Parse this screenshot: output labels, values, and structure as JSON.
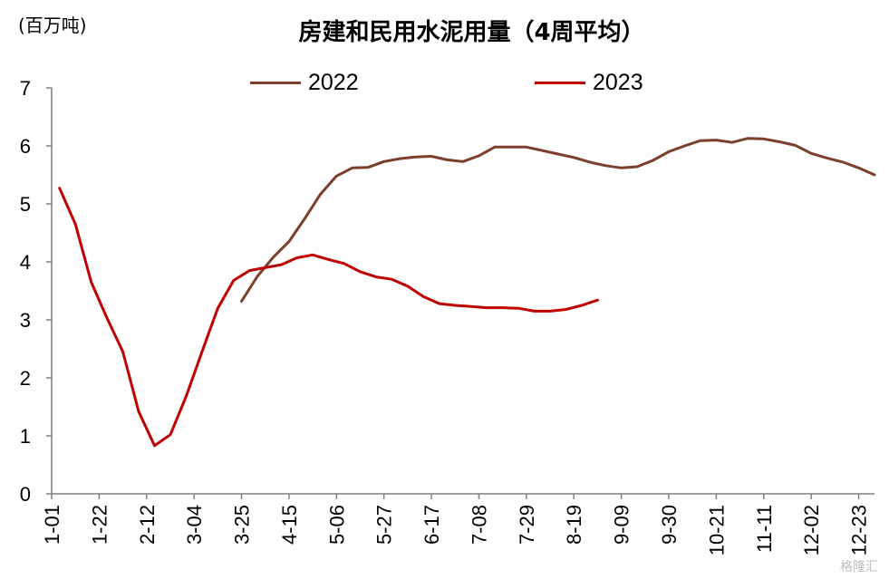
{
  "chart_data": {
    "type": "line",
    "title": "房建和民用水泥用量（4周平均）",
    "ylabel": "(百万吨)",
    "xlabel": "",
    "ylim": [
      0,
      7
    ],
    "yticks": [
      "0",
      "1",
      "2",
      "3",
      "4",
      "5",
      "6",
      "7"
    ],
    "x_tick_labels": [
      "1-01",
      "1-22",
      "2-12",
      "3-04",
      "3-25",
      "4-15",
      "5-06",
      "5-27",
      "6-17",
      "7-08",
      "7-29",
      "8-19",
      "9-09",
      "9-30",
      "10-21",
      "11-11",
      "12-02",
      "12-23"
    ],
    "legend_position": "top",
    "grid": false,
    "series": [
      {
        "name": "2022",
        "color": "#7b3f2a",
        "points": [
          [
            12,
            3.32
          ],
          [
            13,
            3.75
          ],
          [
            14,
            4.08
          ],
          [
            15,
            4.35
          ],
          [
            16,
            4.75
          ],
          [
            17,
            5.17
          ],
          [
            18,
            5.48
          ],
          [
            19,
            5.62
          ],
          [
            20,
            5.63
          ],
          [
            21,
            5.73
          ],
          [
            22,
            5.78
          ],
          [
            23,
            5.81
          ],
          [
            24,
            5.82
          ],
          [
            25,
            5.76
          ],
          [
            26,
            5.73
          ],
          [
            27,
            5.83
          ],
          [
            28,
            5.98
          ],
          [
            29,
            5.98
          ],
          [
            30,
            5.98
          ],
          [
            31,
            5.92
          ],
          [
            32,
            5.86
          ],
          [
            33,
            5.8
          ],
          [
            34,
            5.72
          ],
          [
            35,
            5.66
          ],
          [
            36,
            5.62
          ],
          [
            37,
            5.64
          ],
          [
            38,
            5.75
          ],
          [
            39,
            5.9
          ],
          [
            40,
            6.0
          ],
          [
            41,
            6.09
          ],
          [
            42,
            6.1
          ],
          [
            43,
            6.06
          ],
          [
            44,
            6.13
          ],
          [
            45,
            6.12
          ],
          [
            46,
            6.07
          ],
          [
            47,
            6.01
          ],
          [
            48,
            5.87
          ],
          [
            49,
            5.79
          ],
          [
            50,
            5.72
          ],
          [
            51,
            5.62
          ],
          [
            52,
            5.5
          ]
        ]
      },
      {
        "name": "2023",
        "color": "#c00000",
        "points": [
          [
            0.5,
            5.27
          ],
          [
            1.5,
            4.65
          ],
          [
            2.5,
            3.65
          ],
          [
            3.5,
            3.03
          ],
          [
            4.5,
            2.45
          ],
          [
            5.5,
            1.42
          ],
          [
            6.5,
            0.83
          ],
          [
            7.5,
            1.02
          ],
          [
            8.5,
            1.68
          ],
          [
            9.5,
            2.45
          ],
          [
            10.5,
            3.2
          ],
          [
            11.5,
            3.68
          ],
          [
            12.5,
            3.85
          ],
          [
            13.5,
            3.9
          ],
          [
            14.5,
            3.95
          ],
          [
            15.5,
            4.07
          ],
          [
            16.5,
            4.12
          ],
          [
            17.5,
            4.04
          ],
          [
            18.5,
            3.97
          ],
          [
            19.5,
            3.83
          ],
          [
            20.5,
            3.74
          ],
          [
            21.5,
            3.7
          ],
          [
            22.5,
            3.58
          ],
          [
            23.5,
            3.4
          ],
          [
            24.5,
            3.28
          ],
          [
            25.5,
            3.25
          ],
          [
            26.5,
            3.23
          ],
          [
            27.5,
            3.21
          ],
          [
            28.5,
            3.21
          ],
          [
            29.5,
            3.2
          ],
          [
            30.5,
            3.15
          ],
          [
            31.5,
            3.15
          ],
          [
            32.5,
            3.18
          ],
          [
            33.5,
            3.25
          ],
          [
            34.5,
            3.34
          ]
        ]
      }
    ]
  },
  "watermark": "格隆汇"
}
